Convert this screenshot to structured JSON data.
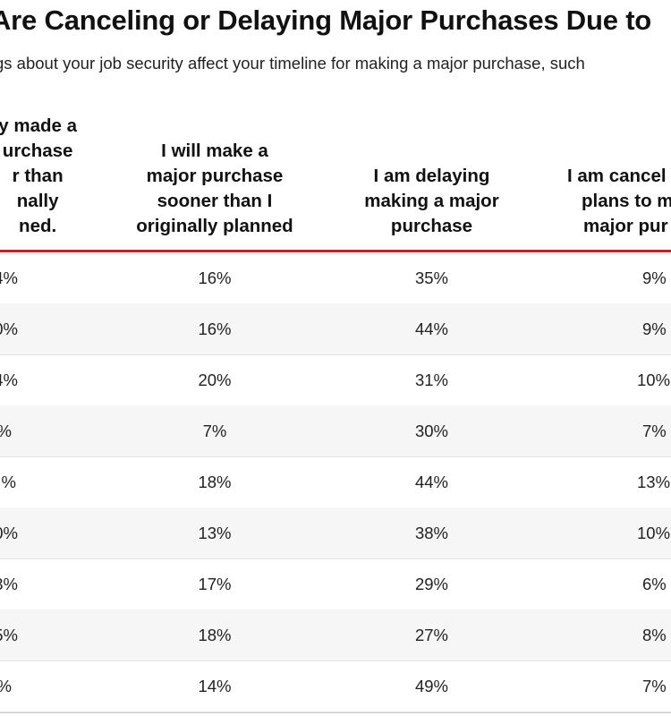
{
  "title": "Are Canceling or Delaying Major Purchases Due to",
  "subtitle": "gs about your job security affect your timeline for making a major purchase, such",
  "columns": [
    {
      "lines": [
        "y made a",
        "urchase",
        "r than",
        "nally",
        "ned."
      ]
    },
    {
      "lines": [
        "I will make a",
        "major purchase",
        "sooner than I",
        "originally planned"
      ]
    },
    {
      "lines": [
        "I am delaying",
        "making a major",
        "purchase"
      ]
    },
    {
      "lines": [
        "I am cancel",
        "plans to m",
        "major pur"
      ]
    }
  ],
  "rows": [
    [
      "4%",
      "16%",
      "35%",
      "9%"
    ],
    [
      "0%",
      "16%",
      "44%",
      "9%"
    ],
    [
      "4%",
      "20%",
      "31%",
      "10%"
    ],
    [
      "%",
      "7%",
      "30%",
      "7%"
    ],
    [
      "%",
      "18%",
      "44%",
      "13%"
    ],
    [
      "0%",
      "13%",
      "38%",
      "10%"
    ],
    [
      "3%",
      "17%",
      "29%",
      "6%"
    ],
    [
      "5%",
      "18%",
      "27%",
      "8%"
    ],
    [
      "%",
      "14%",
      "49%",
      "7%"
    ]
  ],
  "colors": {
    "accent_rule": "#c8202a",
    "row_alt": "#f6f6f6"
  }
}
